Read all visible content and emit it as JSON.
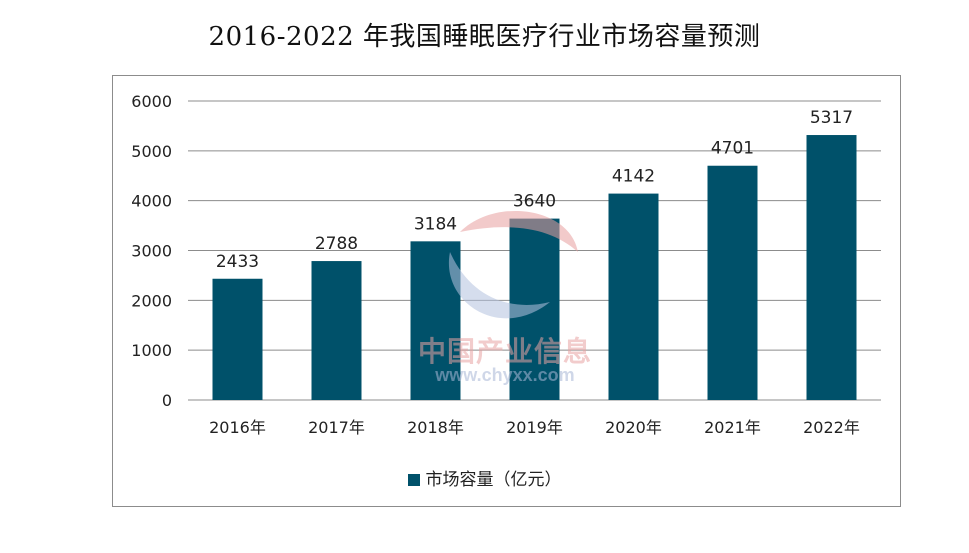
{
  "title": "2016-2022 年我国睡眠医疗行业市场容量预测",
  "watermark": {
    "text_cn": "中国产业信息",
    "text_url": "www.chyxx.com"
  },
  "colors": {
    "bar": "#00516a",
    "grid": "#8c8c8c",
    "axis_text": "#222222"
  },
  "chart_data": {
    "type": "bar",
    "title": "2016-2022 年我国睡眠医疗行业市场容量预测",
    "categories": [
      "2016年",
      "2017年",
      "2018年",
      "2019年",
      "2020年",
      "2021年",
      "2022年"
    ],
    "series": [
      {
        "name": "市场容量（亿元）",
        "values": [
          2433,
          2788,
          3184,
          3640,
          4142,
          4701,
          5317
        ]
      }
    ],
    "data_labels": [
      "2433",
      "2788",
      "3184",
      "3640",
      "4142",
      "4701",
      "5317"
    ],
    "ylim": [
      0,
      6000
    ],
    "yticks": [
      0,
      1000,
      2000,
      3000,
      4000,
      5000,
      6000
    ],
    "ytick_labels": [
      "0",
      "1000",
      "2000",
      "3000",
      "4000",
      "5000",
      "6000"
    ],
    "grid": true,
    "legend_position": "bottom",
    "legend": [
      "市场容量（亿元）"
    ]
  }
}
